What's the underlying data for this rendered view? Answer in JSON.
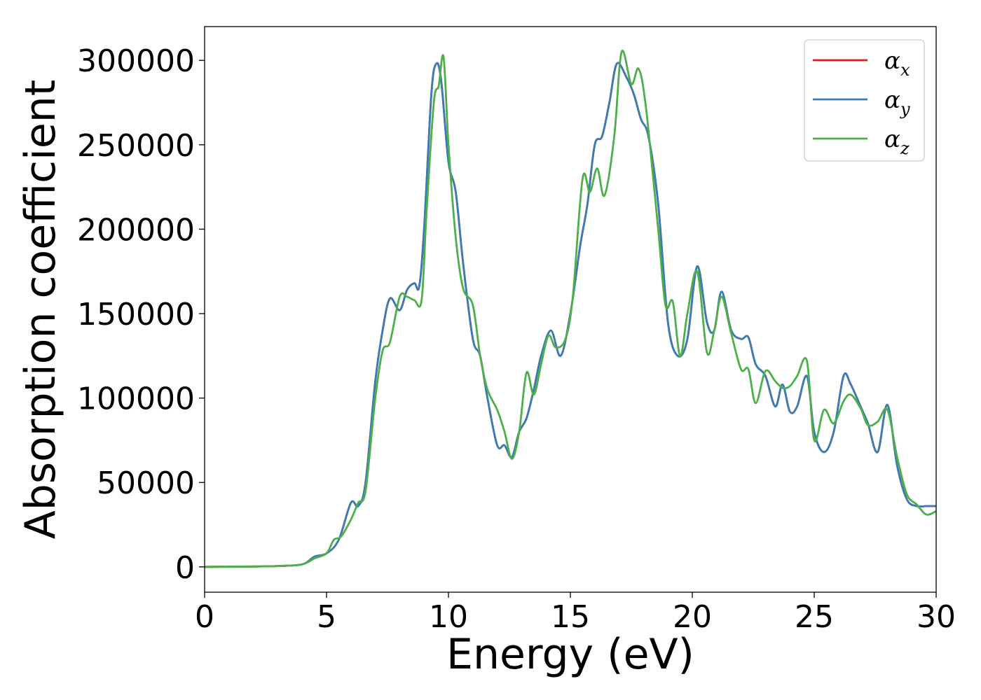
{
  "chart_data": {
    "type": "line",
    "title": "",
    "xlabel": "Energy (eV)",
    "ylabel": "Absorption coefficient",
    "xlim": [
      0,
      30
    ],
    "ylim": [
      -15000,
      320000
    ],
    "xticks": [
      0,
      5,
      10,
      15,
      20,
      25,
      30
    ],
    "yticks": [
      0,
      50000,
      100000,
      150000,
      200000,
      250000,
      300000
    ],
    "grid": false,
    "legend_position": "top-right",
    "series": [
      {
        "name": "α",
        "subscript": "x",
        "color": "#e41a1c",
        "points": [
          [
            0,
            0
          ],
          [
            2,
            200
          ],
          [
            3,
            500
          ],
          [
            4,
            1500
          ],
          [
            4.5,
            6000
          ],
          [
            5,
            8000
          ],
          [
            5.5,
            16000
          ],
          [
            6,
            38000
          ],
          [
            6.3,
            36000
          ],
          [
            6.6,
            50000
          ],
          [
            7,
            110000
          ],
          [
            7.3,
            140000
          ],
          [
            7.6,
            159000
          ],
          [
            8,
            152000
          ],
          [
            8.3,
            164000
          ],
          [
            8.6,
            168000
          ],
          [
            8.8,
            166000
          ],
          [
            9,
            200000
          ],
          [
            9.3,
            280000
          ],
          [
            9.5,
            298000
          ],
          [
            9.7,
            288000
          ],
          [
            10,
            240000
          ],
          [
            10.3,
            222000
          ],
          [
            10.6,
            180000
          ],
          [
            11,
            135000
          ],
          [
            11.3,
            125000
          ],
          [
            11.6,
            100000
          ],
          [
            12,
            72000
          ],
          [
            12.3,
            72000
          ],
          [
            12.6,
            65000
          ],
          [
            12.9,
            80000
          ],
          [
            13.2,
            88000
          ],
          [
            13.5,
            105000
          ],
          [
            13.8,
            125000
          ],
          [
            14.2,
            140000
          ],
          [
            14.6,
            125000
          ],
          [
            15,
            150000
          ],
          [
            15.4,
            190000
          ],
          [
            15.7,
            215000
          ],
          [
            16,
            250000
          ],
          [
            16.3,
            255000
          ],
          [
            16.6,
            275000
          ],
          [
            16.9,
            298000
          ],
          [
            17.3,
            290000
          ],
          [
            17.6,
            280000
          ],
          [
            17.9,
            265000
          ],
          [
            18.2,
            255000
          ],
          [
            18.6,
            215000
          ],
          [
            19,
            145000
          ],
          [
            19.4,
            125000
          ],
          [
            19.8,
            135000
          ],
          [
            20.2,
            178000
          ],
          [
            20.6,
            145000
          ],
          [
            20.9,
            140000
          ],
          [
            21.2,
            163000
          ],
          [
            21.6,
            140000
          ],
          [
            22,
            135000
          ],
          [
            22.3,
            136000
          ],
          [
            22.6,
            120000
          ],
          [
            23,
            113000
          ],
          [
            23.4,
            95000
          ],
          [
            23.7,
            108000
          ],
          [
            24,
            92000
          ],
          [
            24.3,
            95000
          ],
          [
            24.7,
            113000
          ],
          [
            25,
            80000
          ],
          [
            25.4,
            68000
          ],
          [
            25.8,
            80000
          ],
          [
            26.2,
            113000
          ],
          [
            26.5,
            108000
          ],
          [
            26.9,
            95000
          ],
          [
            27.2,
            85000
          ],
          [
            27.6,
            68000
          ],
          [
            28,
            96000
          ],
          [
            28.4,
            60000
          ],
          [
            28.8,
            40000
          ],
          [
            29.2,
            36000
          ],
          [
            29.6,
            36000
          ],
          [
            30,
            36000
          ]
        ]
      },
      {
        "name": "α",
        "subscript": "y",
        "color": "#377eb8",
        "points": [
          [
            0,
            0
          ],
          [
            2,
            200
          ],
          [
            3,
            500
          ],
          [
            4,
            1500
          ],
          [
            4.5,
            6000
          ],
          [
            5,
            8000
          ],
          [
            5.5,
            16000
          ],
          [
            6,
            38000
          ],
          [
            6.3,
            36000
          ],
          [
            6.6,
            50000
          ],
          [
            7,
            110000
          ],
          [
            7.3,
            140000
          ],
          [
            7.6,
            159000
          ],
          [
            8,
            152000
          ],
          [
            8.3,
            164000
          ],
          [
            8.6,
            168000
          ],
          [
            8.8,
            166000
          ],
          [
            9,
            200000
          ],
          [
            9.3,
            280000
          ],
          [
            9.5,
            298000
          ],
          [
            9.7,
            288000
          ],
          [
            10,
            240000
          ],
          [
            10.3,
            222000
          ],
          [
            10.6,
            180000
          ],
          [
            11,
            135000
          ],
          [
            11.3,
            125000
          ],
          [
            11.6,
            100000
          ],
          [
            12,
            72000
          ],
          [
            12.3,
            72000
          ],
          [
            12.6,
            65000
          ],
          [
            12.9,
            80000
          ],
          [
            13.2,
            88000
          ],
          [
            13.5,
            105000
          ],
          [
            13.8,
            125000
          ],
          [
            14.2,
            140000
          ],
          [
            14.6,
            125000
          ],
          [
            15,
            150000
          ],
          [
            15.4,
            190000
          ],
          [
            15.7,
            215000
          ],
          [
            16,
            250000
          ],
          [
            16.3,
            255000
          ],
          [
            16.6,
            275000
          ],
          [
            16.9,
            298000
          ],
          [
            17.3,
            290000
          ],
          [
            17.6,
            280000
          ],
          [
            17.9,
            265000
          ],
          [
            18.2,
            255000
          ],
          [
            18.6,
            215000
          ],
          [
            19,
            145000
          ],
          [
            19.4,
            125000
          ],
          [
            19.8,
            135000
          ],
          [
            20.2,
            178000
          ],
          [
            20.6,
            145000
          ],
          [
            20.9,
            140000
          ],
          [
            21.2,
            163000
          ],
          [
            21.6,
            140000
          ],
          [
            22,
            135000
          ],
          [
            22.3,
            136000
          ],
          [
            22.6,
            120000
          ],
          [
            23,
            113000
          ],
          [
            23.4,
            95000
          ],
          [
            23.7,
            108000
          ],
          [
            24,
            92000
          ],
          [
            24.3,
            95000
          ],
          [
            24.7,
            113000
          ],
          [
            25,
            80000
          ],
          [
            25.4,
            68000
          ],
          [
            25.8,
            80000
          ],
          [
            26.2,
            113000
          ],
          [
            26.5,
            108000
          ],
          [
            26.9,
            95000
          ],
          [
            27.2,
            85000
          ],
          [
            27.6,
            68000
          ],
          [
            28,
            96000
          ],
          [
            28.4,
            60000
          ],
          [
            28.8,
            40000
          ],
          [
            29.2,
            36000
          ],
          [
            29.6,
            36000
          ],
          [
            30,
            36000
          ]
        ]
      },
      {
        "name": "α",
        "subscript": "z",
        "color": "#4daf4a",
        "points": [
          [
            0,
            0
          ],
          [
            2,
            200
          ],
          [
            3,
            500
          ],
          [
            4,
            1500
          ],
          [
            4.5,
            5000
          ],
          [
            5,
            8000
          ],
          [
            5.3,
            16000
          ],
          [
            5.6,
            18000
          ],
          [
            6,
            28000
          ],
          [
            6.3,
            38000
          ],
          [
            6.6,
            45000
          ],
          [
            7,
            100000
          ],
          [
            7.3,
            128000
          ],
          [
            7.6,
            133000
          ],
          [
            8,
            160000
          ],
          [
            8.3,
            160000
          ],
          [
            8.6,
            158000
          ],
          [
            8.9,
            158000
          ],
          [
            9.1,
            210000
          ],
          [
            9.4,
            275000
          ],
          [
            9.6,
            285000
          ],
          [
            9.8,
            302000
          ],
          [
            10,
            250000
          ],
          [
            10.3,
            195000
          ],
          [
            10.6,
            165000
          ],
          [
            11,
            155000
          ],
          [
            11.3,
            125000
          ],
          [
            11.6,
            105000
          ],
          [
            12,
            93000
          ],
          [
            12.3,
            80000
          ],
          [
            12.6,
            64000
          ],
          [
            12.9,
            80000
          ],
          [
            13.2,
            115000
          ],
          [
            13.5,
            102000
          ],
          [
            13.8,
            120000
          ],
          [
            14.1,
            137000
          ],
          [
            14.4,
            130000
          ],
          [
            14.8,
            135000
          ],
          [
            15.1,
            160000
          ],
          [
            15.5,
            230000
          ],
          [
            15.8,
            222000
          ],
          [
            16.1,
            236000
          ],
          [
            16.4,
            220000
          ],
          [
            16.8,
            255000
          ],
          [
            17.1,
            305000
          ],
          [
            17.5,
            286000
          ],
          [
            17.8,
            295000
          ],
          [
            18.1,
            272000
          ],
          [
            18.6,
            200000
          ],
          [
            18.9,
            155000
          ],
          [
            19.2,
            157000
          ],
          [
            19.5,
            125000
          ],
          [
            19.8,
            150000
          ],
          [
            20.2,
            175000
          ],
          [
            20.6,
            127000
          ],
          [
            20.9,
            140000
          ],
          [
            21.2,
            160000
          ],
          [
            21.6,
            138000
          ],
          [
            22,
            117000
          ],
          [
            22.3,
            117000
          ],
          [
            22.6,
            97000
          ],
          [
            23,
            116000
          ],
          [
            23.4,
            110000
          ],
          [
            23.7,
            106000
          ],
          [
            24,
            107000
          ],
          [
            24.3,
            113000
          ],
          [
            24.7,
            122000
          ],
          [
            25,
            75000
          ],
          [
            25.4,
            93000
          ],
          [
            25.8,
            85000
          ],
          [
            26.2,
            98000
          ],
          [
            26.5,
            102000
          ],
          [
            26.9,
            94000
          ],
          [
            27.2,
            84000
          ],
          [
            27.6,
            86000
          ],
          [
            28,
            93000
          ],
          [
            28.4,
            65000
          ],
          [
            28.8,
            43000
          ],
          [
            29.2,
            37000
          ],
          [
            29.6,
            31000
          ],
          [
            30,
            33000
          ]
        ]
      }
    ]
  }
}
